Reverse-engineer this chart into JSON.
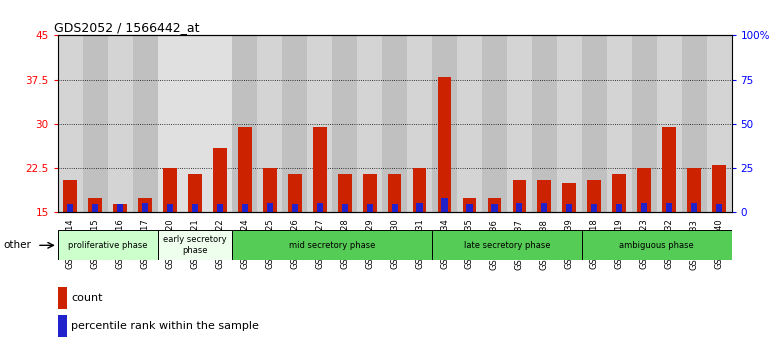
{
  "title": "GDS2052 / 1566442_at",
  "samples": [
    "GSM109814",
    "GSM109815",
    "GSM109816",
    "GSM109817",
    "GSM109820",
    "GSM109821",
    "GSM109822",
    "GSM109824",
    "GSM109825",
    "GSM109826",
    "GSM109827",
    "GSM109828",
    "GSM109829",
    "GSM109830",
    "GSM109831",
    "GSM109834",
    "GSM109835",
    "GSM109836",
    "GSM109837",
    "GSM109838",
    "GSM109839",
    "GSM109818",
    "GSM109819",
    "GSM109823",
    "GSM109832",
    "GSM109833",
    "GSM109840"
  ],
  "count_values": [
    20.5,
    17.5,
    16.5,
    17.5,
    22.5,
    21.5,
    26.0,
    29.5,
    22.5,
    21.5,
    29.5,
    21.5,
    21.5,
    21.5,
    22.5,
    38.0,
    17.5,
    17.5,
    20.5,
    20.5,
    20.0,
    20.5,
    21.5,
    22.5,
    29.5,
    22.5,
    23.0
  ],
  "percentile_values": [
    5.0,
    5.0,
    5.0,
    5.5,
    5.0,
    5.0,
    5.0,
    5.0,
    5.5,
    5.0,
    5.5,
    5.0,
    5.0,
    5.0,
    5.5,
    8.0,
    5.0,
    5.0,
    5.5,
    5.5,
    5.0,
    5.0,
    5.0,
    5.5,
    5.5,
    5.5,
    5.0
  ],
  "phase_groups": [
    {
      "label": "proliferative phase",
      "start": 0,
      "end": 4,
      "color": "#ccffcc"
    },
    {
      "label": "early secretory\nphase",
      "start": 4,
      "end": 7,
      "color": "#eeffee"
    },
    {
      "label": "mid secretory phase",
      "start": 7,
      "end": 15,
      "color": "#55cc55"
    },
    {
      "label": "late secretory phase",
      "start": 15,
      "end": 21,
      "color": "#55cc55"
    },
    {
      "label": "ambiguous phase",
      "start": 21,
      "end": 27,
      "color": "#55cc55"
    }
  ],
  "col_bg_colors_even": "#d4d4d4",
  "col_bg_colors_odd": "#c0c0c0",
  "early_secretory_bg": "#e0e0e0",
  "ylim_left": [
    15,
    45
  ],
  "ylim_right": [
    0,
    100
  ],
  "yticks_left": [
    15,
    22.5,
    30,
    37.5,
    45
  ],
  "yticks_right": [
    0,
    25,
    50,
    75,
    100
  ],
  "ytick_labels_right": [
    "0",
    "25",
    "50",
    "75",
    "100%"
  ],
  "count_color": "#cc2200",
  "percentile_color": "#2222cc",
  "bar_width": 0.55,
  "background_color": "#ffffff"
}
